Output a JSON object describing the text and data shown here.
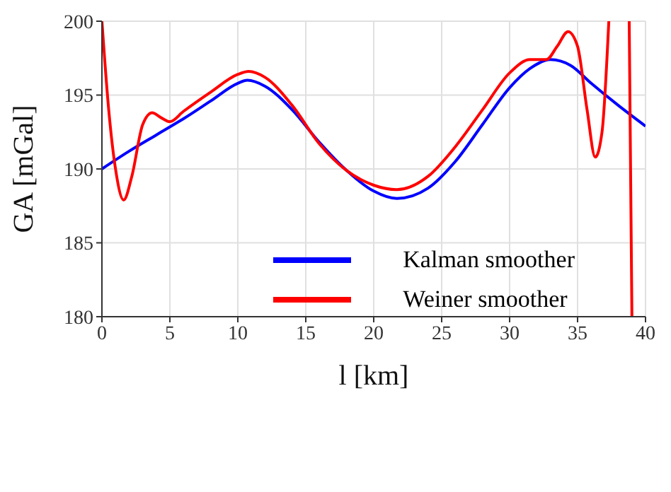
{
  "chart_data": {
    "type": "line",
    "xlabel": "l [km]",
    "ylabel": "GA [mGal]",
    "xlim": [
      0,
      40
    ],
    "ylim": [
      180,
      200
    ],
    "xticks": [
      0,
      5,
      10,
      15,
      20,
      25,
      30,
      35,
      40
    ],
    "yticks": [
      180,
      185,
      190,
      195,
      200
    ],
    "grid": true,
    "legend": "bottom right",
    "marker": "none",
    "line_style": "solid",
    "series": [
      {
        "name": "Kalman smoother",
        "color": "#0000ff",
        "x": [
          0,
          2,
          4,
          6,
          8,
          10,
          10.7,
          12,
          14,
          16,
          18,
          20,
          21.7,
          24,
          26,
          28,
          30,
          31.5,
          33,
          34.5,
          36,
          38,
          40
        ],
        "values": [
          190,
          191.2,
          192.3,
          193.4,
          194.6,
          195.8,
          196,
          195.6,
          194,
          191.8,
          189.9,
          188.5,
          188,
          188.7,
          190.5,
          193,
          195.5,
          196.8,
          197.4,
          197,
          195.8,
          194.3,
          192.9
        ]
      },
      {
        "name": "Weiner smoother",
        "color": "#ff0000",
        "x": [
          0,
          0.5,
          1,
          1.6,
          2.2,
          3,
          3.7,
          4.3,
          5,
          6,
          8,
          10,
          10.8,
          12,
          14,
          16,
          18,
          20,
          21.7,
          24,
          26,
          28,
          30,
          31.5,
          32.7,
          33.5,
          34.3,
          35,
          35.7,
          36.3,
          36.8,
          37.3,
          38,
          38.8,
          39
        ],
        "values": [
          200,
          194,
          190,
          187.9,
          189.5,
          193,
          193.8,
          193.5,
          193.2,
          193.9,
          195.2,
          196.4,
          196.6,
          196.2,
          194.3,
          191.7,
          189.9,
          188.9,
          188.6,
          189.5,
          191.5,
          194,
          196.5,
          197.4,
          197.4,
          198.3,
          199.3,
          198.3,
          194,
          190.8,
          192.5,
          200,
          null,
          200,
          180
        ]
      }
    ]
  }
}
